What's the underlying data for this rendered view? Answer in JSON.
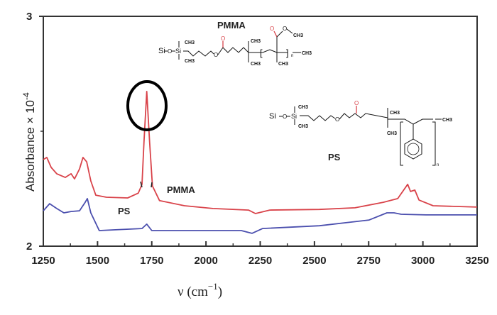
{
  "chart_data": {
    "type": "line",
    "title": "",
    "xlabel": "ν (cm⁻¹)",
    "ylabel": "Absorbance × 10⁻⁴",
    "xlim": [
      1250,
      3250
    ],
    "ylim": [
      2,
      3
    ],
    "x_ticks": [
      "1250",
      "1500",
      "1750",
      "2000",
      "2250",
      "2500",
      "2750",
      "3000",
      "3250"
    ],
    "y_ticks": [
      "2",
      "3"
    ],
    "grid": false,
    "series": [
      {
        "name": "PMMA",
        "color": "#d9434a",
        "x": [
          1250,
          1266,
          1286,
          1312,
          1351,
          1378,
          1394,
          1417,
          1433,
          1450,
          1469,
          1492,
          1541,
          1639,
          1688,
          1705,
          1714,
          1727,
          1740,
          1753,
          1786,
          1901,
          2032,
          2196,
          2228,
          2294,
          2523,
          2687,
          2818,
          2884,
          2930,
          2943,
          2963,
          2982,
          3047,
          3250
        ],
        "y": [
          2.377,
          2.386,
          2.343,
          2.315,
          2.299,
          2.315,
          2.293,
          2.336,
          2.386,
          2.367,
          2.284,
          2.222,
          2.213,
          2.21,
          2.231,
          2.269,
          2.454,
          2.673,
          2.454,
          2.262,
          2.198,
          2.176,
          2.164,
          2.157,
          2.142,
          2.157,
          2.16,
          2.167,
          2.191,
          2.207,
          2.269,
          2.238,
          2.244,
          2.201,
          2.176,
          2.17
        ]
      },
      {
        "name": "PS",
        "color": "#4b4fae",
        "x": [
          1250,
          1279,
          1312,
          1345,
          1378,
          1417,
          1443,
          1453,
          1469,
          1508,
          1574,
          1705,
          1727,
          1750,
          1901,
          2163,
          2212,
          2261,
          2523,
          2752,
          2834,
          2867,
          2900,
          3014,
          3250
        ],
        "y": [
          2.154,
          2.185,
          2.164,
          2.145,
          2.151,
          2.154,
          2.191,
          2.207,
          2.145,
          2.068,
          2.071,
          2.077,
          2.096,
          2.068,
          2.068,
          2.068,
          2.056,
          2.077,
          2.089,
          2.114,
          2.145,
          2.145,
          2.139,
          2.136,
          2.136
        ]
      }
    ],
    "annotations": [
      {
        "text": "PMMA",
        "near_x": 1900,
        "near_y": 2.25
      },
      {
        "text": "PS",
        "near_x": 1600,
        "near_y": 2.08
      },
      {
        "shape": "ellipse",
        "around": "PMMA C=O peak ~1730 cm⁻¹"
      }
    ],
    "insets": [
      {
        "label": "PMMA",
        "structure": "Si-O-Si(CH3)2-(CH2)3-O-C(=O)-(CH2)2-C(CH3)2-[CH2-C(CH3)(COOCH3)]n-CH3"
      },
      {
        "label": "PS",
        "structure": "Si-O-Si(CH3)2-(CH2)3-O-C(=O)-(CH2)2-C(CH3)2-[CH2-CH(C6H5)]n-CH3"
      }
    ]
  },
  "labels": {
    "y_axis": "Absorbance × 10",
    "y_axis_exp": "-4",
    "x_axis": "ν (cm",
    "x_axis_exp": "−1",
    "x_axis_close": ")",
    "pmma_curve": "PMMA",
    "ps_curve": "PS",
    "pmma_struct_title": "PMMA",
    "ps_struct_title": "PS",
    "si": "Si",
    "o": "O",
    "ch3": "CH3",
    "n": "n",
    "ticks_x": [
      "1250",
      "1500",
      "1750",
      "2000",
      "2250",
      "2500",
      "2750",
      "3000",
      "3250"
    ],
    "tick_y_top": "3",
    "tick_y_bottom": "2"
  }
}
